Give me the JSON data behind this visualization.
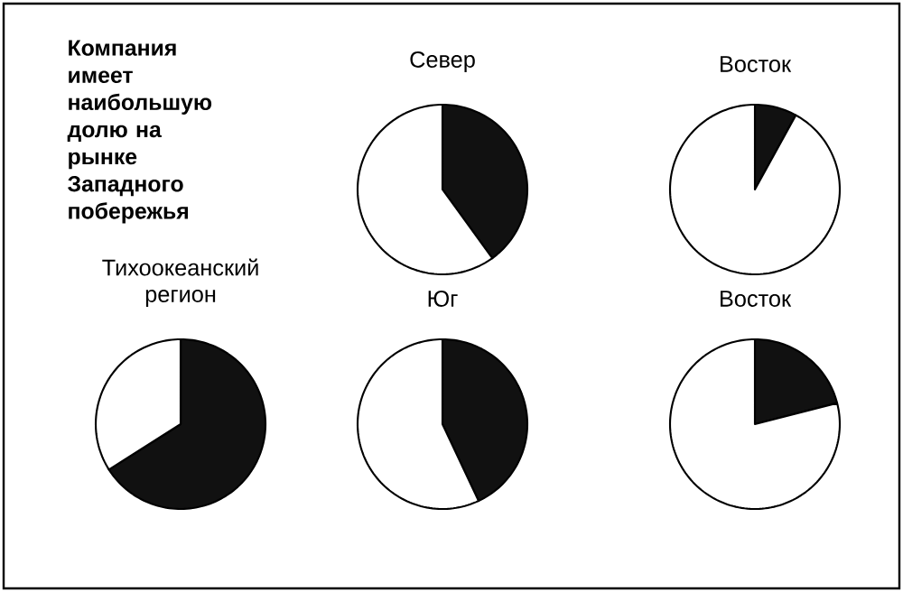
{
  "chart_data": [
    {
      "type": "other",
      "title": "Компания имеет наибольшую долю на рынке Западного побережья"
    },
    {
      "type": "pie",
      "title": "Север",
      "categories": [
        null,
        null
      ],
      "values": [
        40,
        60
      ],
      "colors": [
        "#111111",
        "#ffffff"
      ]
    },
    {
      "type": "pie",
      "title": "Восток",
      "categories": [
        null,
        null
      ],
      "values": [
        8,
        92
      ],
      "colors": [
        "#111111",
        "#ffffff"
      ]
    },
    {
      "type": "pie",
      "title": "Тихоокеанский регион",
      "categories": [
        null,
        null
      ],
      "values": [
        66,
        34
      ],
      "colors": [
        "#111111",
        "#ffffff"
      ]
    },
    {
      "type": "pie",
      "title": "Юг",
      "categories": [
        null,
        null
      ],
      "values": [
        43,
        57
      ],
      "colors": [
        "#111111",
        "#ffffff"
      ]
    },
    {
      "type": "pie",
      "title": "Восток",
      "categories": [
        null,
        null
      ],
      "values": [
        21,
        79
      ],
      "colors": [
        "#111111",
        "#ffffff"
      ]
    }
  ]
}
